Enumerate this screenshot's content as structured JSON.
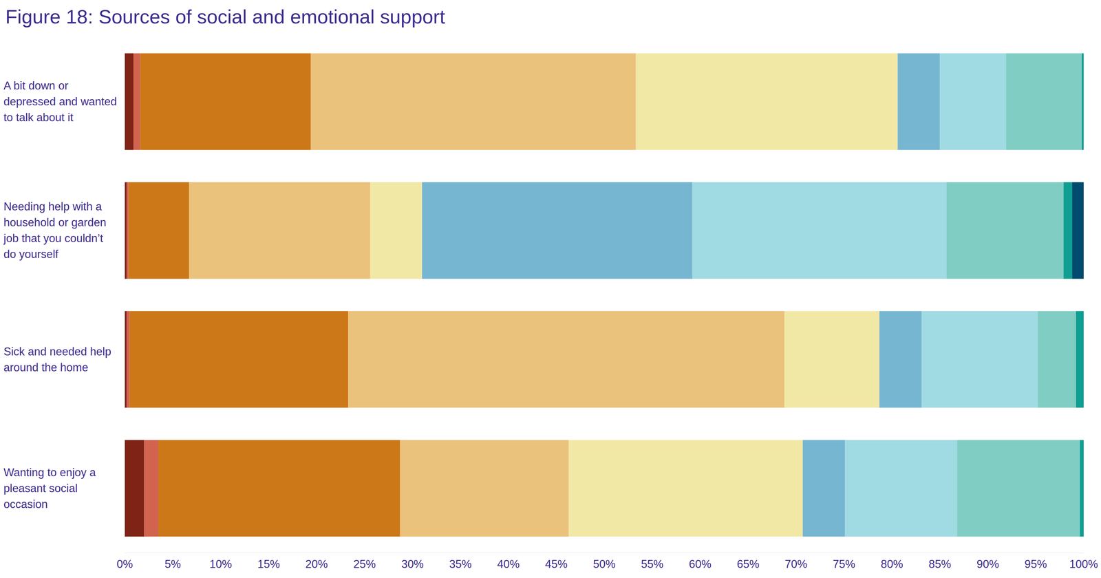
{
  "chart_data": {
    "type": "bar",
    "title": "Figure 18: Sources of social and emotional support",
    "orientation": "horizontal",
    "stacked": true,
    "grid": false,
    "categories": [
      "A bit down or depressed and wanted to talk about it",
      "Needing help with a household or garden job that you couldn’t do yourself",
      "Sick and needed help around the home",
      "Wanting to enjoy a pleasant social occasion"
    ],
    "series": [
      {
        "color": "#7e2316",
        "values": [
          0.9,
          0.2,
          0.2,
          2.0
        ]
      },
      {
        "color": "#d1634f",
        "values": [
          0.7,
          0.2,
          0.3,
          1.5
        ]
      },
      {
        "color": "#cc7818",
        "values": [
          17.8,
          6.3,
          22.8,
          25.2
        ]
      },
      {
        "color": "#ebc27c",
        "values": [
          33.9,
          18.9,
          45.5,
          17.6
        ]
      },
      {
        "color": "#f2e8a6",
        "values": [
          27.3,
          5.4,
          9.9,
          24.4
        ]
      },
      {
        "color": "#76b6d1",
        "values": [
          4.4,
          28.2,
          4.4,
          4.4
        ]
      },
      {
        "color": "#a0dae3",
        "values": [
          6.9,
          26.5,
          12.1,
          11.7
        ]
      },
      {
        "color": "#80cdc3",
        "values": [
          7.9,
          12.2,
          4.0,
          12.8
        ]
      },
      {
        "color": "#0f9e92",
        "values": [
          0.2,
          0.9,
          0.8,
          0.4
        ]
      },
      {
        "color": "#004b6e",
        "values": [
          0,
          1.2,
          0,
          0
        ]
      }
    ],
    "xlim": [
      0,
      100
    ],
    "xticks": [
      {
        "value": 0,
        "label": "0%"
      },
      {
        "value": 5,
        "label": "5%"
      },
      {
        "value": 10,
        "label": "10%"
      },
      {
        "value": 15,
        "label": "15%"
      },
      {
        "value": 20,
        "label": "20%"
      },
      {
        "value": 25,
        "label": "25%"
      },
      {
        "value": 30,
        "label": "30%"
      },
      {
        "value": 35,
        "label": "35%"
      },
      {
        "value": 40,
        "label": "40%"
      },
      {
        "value": 45,
        "label": "45%"
      },
      {
        "value": 50,
        "label": "50%"
      },
      {
        "value": 55,
        "label": "55%"
      },
      {
        "value": 60,
        "label": "60%"
      },
      {
        "value": 65,
        "label": "65%"
      },
      {
        "value": 70,
        "label": "70%"
      },
      {
        "value": 75,
        "label": "75%"
      },
      {
        "value": 80,
        "label": "80%"
      },
      {
        "value": 85,
        "label": "85%"
      },
      {
        "value": 90,
        "label": "90%"
      },
      {
        "value": 95,
        "label": "95%"
      },
      {
        "value": 100,
        "label": "100%"
      }
    ]
  }
}
